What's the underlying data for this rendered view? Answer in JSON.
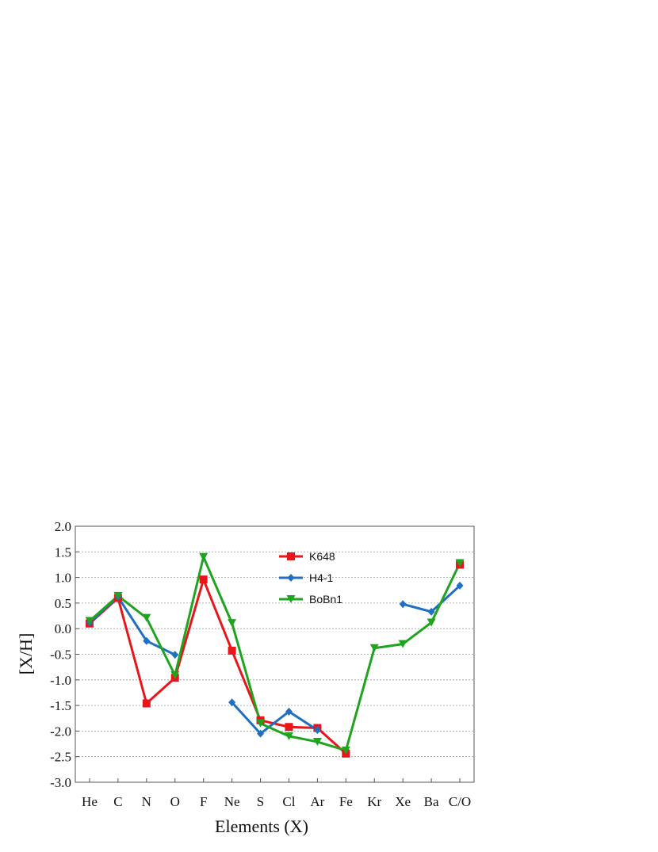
{
  "chart_data": {
    "type": "line",
    "xlabel": "Elements (X)",
    "ylabel": "[X/H]",
    "categories": [
      "He",
      "C",
      "N",
      "O",
      "F",
      "Ne",
      "S",
      "Cl",
      "Ar",
      "Fe",
      "Kr",
      "Xe",
      "Ba",
      "C/O"
    ],
    "ylim": [
      -3.0,
      2.0
    ],
    "yticks": [
      "2.0",
      "1.5",
      "1.0",
      "0.5",
      "0.0",
      "-0.5",
      "-1.0",
      "-1.5",
      "-2.0",
      "-2.5",
      "-3.0"
    ],
    "grid": "horizontal dotted",
    "legend_position": "top-center",
    "series": [
      {
        "name": "K648",
        "color": "#e8161a",
        "marker": "square",
        "values": [
          0.1,
          0.6,
          -1.46,
          -0.96,
          0.96,
          -0.43,
          -1.79,
          -1.92,
          -1.94,
          -2.44,
          null,
          null,
          null,
          1.25
        ]
      },
      {
        "name": "H4-1",
        "color": "#1f6fc5",
        "marker": "diamond",
        "values": [
          0.12,
          0.62,
          -0.24,
          -0.51,
          null,
          -1.44,
          -2.05,
          -1.62,
          -1.98,
          null,
          null,
          0.48,
          0.33,
          0.84
        ]
      },
      {
        "name": "BoBn1",
        "color": "#1ea41e",
        "marker": "triangle-down",
        "values": [
          0.15,
          0.64,
          0.21,
          -0.91,
          1.4,
          0.11,
          -1.85,
          -2.1,
          -2.21,
          -2.38,
          -0.38,
          -0.3,
          0.12,
          1.28
        ]
      }
    ]
  }
}
